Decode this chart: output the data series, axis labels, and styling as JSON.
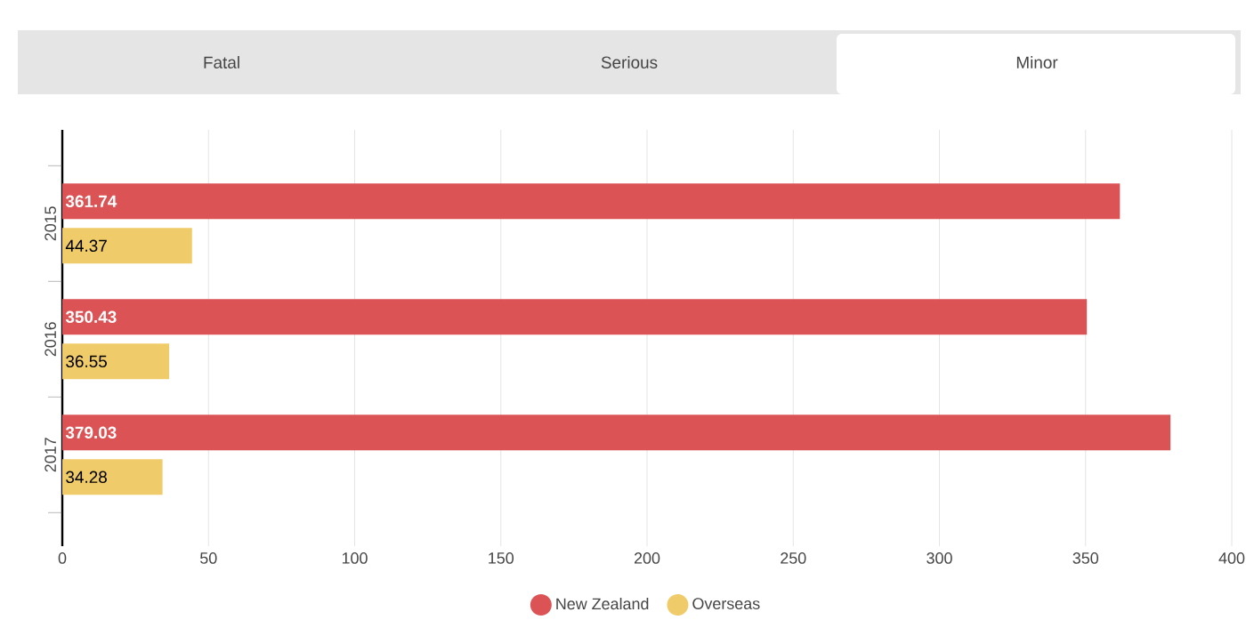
{
  "chart_data": {
    "type": "bar",
    "orientation": "horizontal",
    "annotations": [
      "Fatal",
      "Serious",
      "Minor"
    ],
    "categories": [
      "2015",
      "2016",
      "2017"
    ],
    "series": [
      {
        "name": "New Zealand",
        "color": "#dc5356",
        "values": [
          361.74,
          350.43,
          379.03
        ]
      },
      {
        "name": "Overseas",
        "color": "#f0cb69",
        "values": [
          44.37,
          36.55,
          34.28
        ]
      }
    ],
    "xlim": [
      0,
      400
    ],
    "xticks": [
      0,
      50,
      100,
      150,
      200,
      250,
      300,
      350,
      400
    ],
    "grid": "x",
    "legend": "bottom",
    "data_labels": true
  }
}
